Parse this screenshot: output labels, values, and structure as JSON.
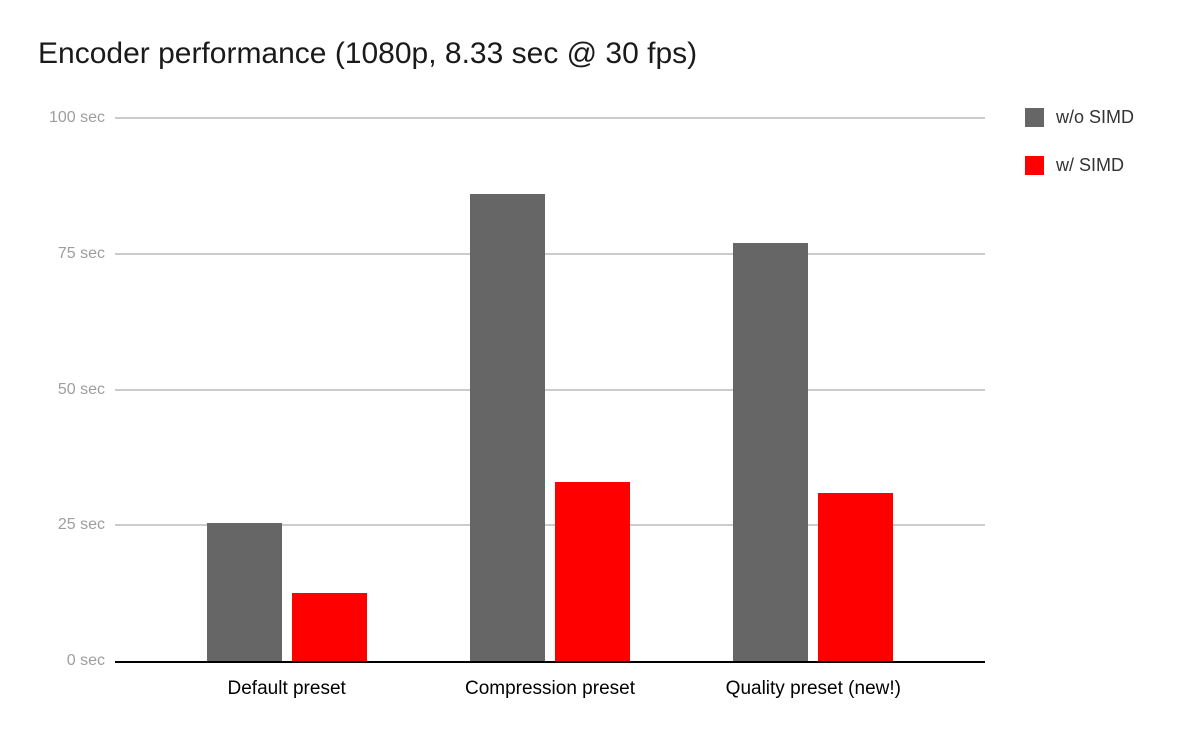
{
  "chart_data": {
    "type": "bar",
    "title": "Encoder performance (1080p, 8.33 sec @ 30 fps)",
    "categories": [
      "Default preset",
      "Compression preset",
      "Quality preset (new!)"
    ],
    "series": [
      {
        "name": "w/o SIMD",
        "color": "#666666",
        "values": [
          25.5,
          86,
          77
        ]
      },
      {
        "name": "w/ SIMD",
        "color": "#ff0000",
        "values": [
          12.5,
          33,
          31
        ]
      }
    ],
    "xlabel": "",
    "ylabel": "",
    "ylim": [
      0,
      100
    ],
    "yticks": [
      {
        "value": 0,
        "label": "0 sec"
      },
      {
        "value": 25,
        "label": "25 sec"
      },
      {
        "value": 50,
        "label": "50 sec"
      },
      {
        "value": 75,
        "label": "75 sec"
      },
      {
        "value": 100,
        "label": "100 sec"
      }
    ],
    "grid": true,
    "legend_position": "top-right"
  },
  "colors": {
    "background": "#ffffff",
    "title": "#1a1a1a",
    "ytick_label": "#9e9e9e",
    "xtick_label": "#000000",
    "gridline": "#cccccc",
    "axis_line": "#000000",
    "legend_label": "#333333"
  }
}
